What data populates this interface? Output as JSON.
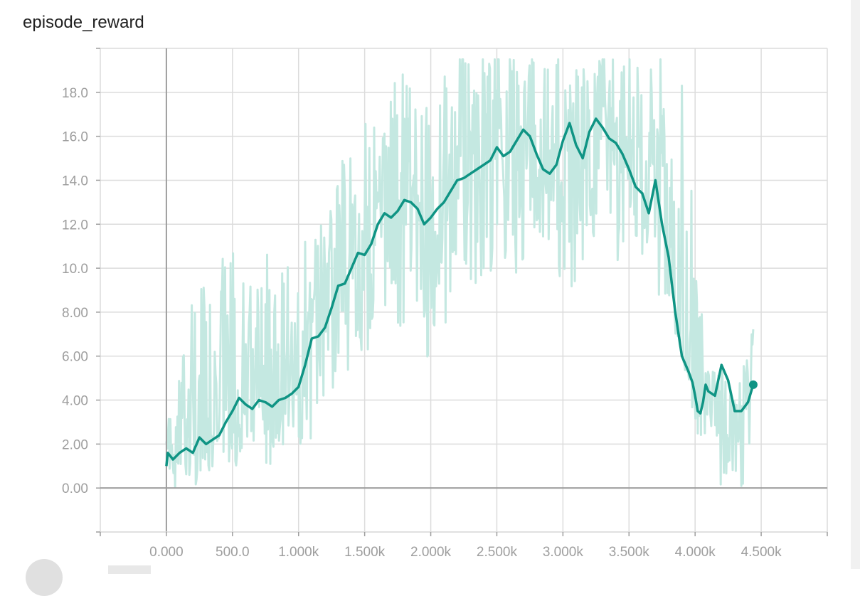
{
  "title": "episode_reward",
  "chart_data": {
    "type": "line",
    "title": "episode_reward",
    "xlim": [
      -500,
      5000
    ],
    "ylim": [
      -2,
      20
    ],
    "grid": true,
    "x_ticks": [
      0,
      500,
      1000,
      1500,
      2000,
      2500,
      3000,
      3500,
      4000,
      4500
    ],
    "x_tick_labels": [
      "0.000",
      "500.0",
      "1.000k",
      "1.500k",
      "2.000k",
      "2.500k",
      "3.000k",
      "3.500k",
      "4.000k",
      "4.500k"
    ],
    "y_ticks": [
      0,
      2,
      4,
      6,
      8,
      10,
      12,
      14,
      16,
      18
    ],
    "y_tick_labels": [
      "0.00",
      "2.00",
      "4.00",
      "6.00",
      "8.00",
      "10.0",
      "12.0",
      "14.0",
      "16.0",
      "18.0"
    ],
    "colors": {
      "smoothed": "#0f9484",
      "raw": "#c4e8e1",
      "grid": "#dcdcdc",
      "zero_axis": "#9e9e9e"
    },
    "series": [
      {
        "role": "smoothed",
        "x": [
          0,
          10,
          50,
          100,
          150,
          200,
          250,
          300,
          350,
          400,
          450,
          500,
          550,
          600,
          650,
          700,
          750,
          800,
          850,
          900,
          950,
          1000,
          1050,
          1100,
          1150,
          1200,
          1250,
          1300,
          1350,
          1400,
          1450,
          1500,
          1550,
          1600,
          1650,
          1700,
          1750,
          1800,
          1850,
          1900,
          1950,
          2000,
          2050,
          2100,
          2150,
          2200,
          2250,
          2300,
          2350,
          2400,
          2450,
          2500,
          2550,
          2600,
          2650,
          2700,
          2750,
          2800,
          2850,
          2900,
          2950,
          3000,
          3050,
          3100,
          3150,
          3200,
          3250,
          3300,
          3350,
          3400,
          3450,
          3500,
          3550,
          3600,
          3650,
          3700,
          3750,
          3800,
          3850,
          3900,
          3950,
          3980,
          4000,
          4020,
          4040,
          4060,
          4080,
          4100,
          4150,
          4200,
          4250,
          4300,
          4350,
          4400,
          4440
        ],
        "y": [
          1.0,
          1.6,
          1.3,
          1.6,
          1.8,
          1.6,
          2.3,
          2.0,
          2.2,
          2.4,
          3.0,
          3.5,
          4.1,
          3.8,
          3.6,
          4.0,
          3.9,
          3.7,
          4.0,
          4.1,
          4.3,
          4.6,
          5.6,
          6.8,
          6.9,
          7.3,
          8.2,
          9.2,
          9.3,
          10.0,
          10.7,
          10.6,
          11.1,
          12.0,
          12.5,
          12.3,
          12.6,
          13.1,
          13.0,
          12.7,
          12.0,
          12.3,
          12.7,
          13.0,
          13.5,
          14.0,
          14.1,
          14.3,
          14.5,
          14.7,
          14.9,
          15.5,
          15.1,
          15.3,
          15.8,
          16.3,
          16.0,
          15.2,
          14.5,
          14.3,
          14.7,
          15.8,
          16.6,
          15.6,
          15.0,
          16.2,
          16.8,
          16.4,
          15.9,
          15.7,
          15.2,
          14.5,
          13.7,
          13.4,
          12.5,
          14.0,
          12.0,
          10.5,
          8.0,
          6.0,
          5.3,
          4.8,
          4.2,
          3.5,
          3.4,
          3.9,
          4.7,
          4.4,
          4.2,
          5.6,
          4.9,
          3.5,
          3.5,
          3.9,
          4.7
        ]
      }
    ],
    "raw_band": {
      "role": "raw",
      "x": [
        0,
        100,
        200,
        300,
        400,
        500,
        600,
        700,
        800,
        900,
        1000,
        1100,
        1200,
        1300,
        1400,
        1500,
        1600,
        1700,
        1800,
        1900,
        2000,
        2100,
        2200,
        2300,
        2400,
        2500,
        2600,
        2700,
        2800,
        2900,
        3000,
        3100,
        3200,
        3300,
        3400,
        3500,
        3600,
        3700,
        3800,
        3900,
        4000,
        4100,
        4200,
        4300,
        4400,
        4440
      ],
      "y_low": [
        0,
        0,
        0,
        0.5,
        1,
        1,
        1,
        1,
        1,
        2,
        2,
        2,
        3,
        4,
        5,
        6,
        7,
        9,
        6,
        8,
        5,
        7,
        8,
        9,
        9,
        10,
        10,
        9,
        11,
        10,
        8,
        9,
        11,
        12,
        10,
        11,
        10,
        9,
        8,
        6,
        3,
        0,
        0,
        0,
        0,
        3
      ],
      "y_high": [
        3,
        5,
        10,
        9,
        11,
        11,
        9,
        11,
        11,
        10,
        11,
        12,
        13,
        15,
        15,
        17,
        18,
        19,
        20,
        17,
        18,
        19,
        20,
        20,
        20,
        20,
        20,
        20,
        20,
        20,
        20,
        20,
        20,
        20,
        20,
        20,
        19,
        20,
        20,
        20,
        12,
        6,
        5,
        4,
        7,
        8
      ]
    }
  }
}
